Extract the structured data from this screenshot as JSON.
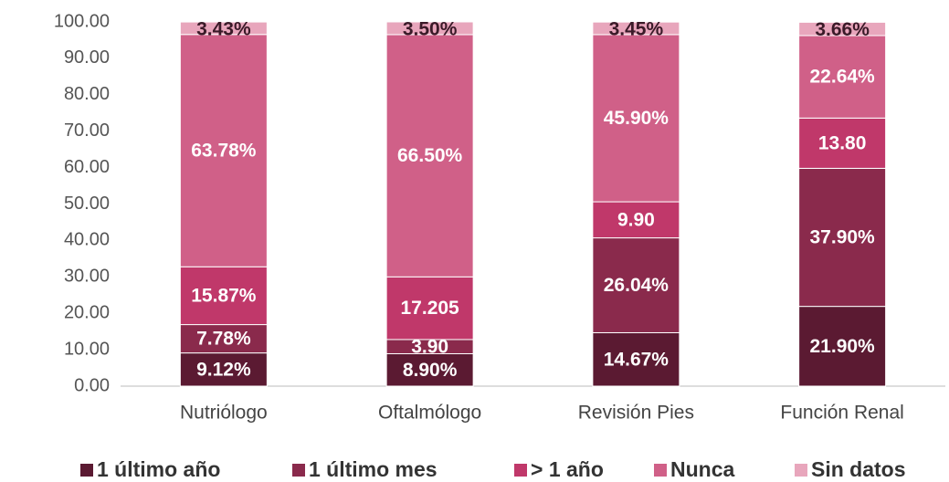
{
  "chart_data": {
    "type": "stacked_bar",
    "categories": [
      "Nutriólogo",
      "Oftalmólogo",
      "Revisión Pies",
      "Función Renal"
    ],
    "series": [
      {
        "name": "1 último año",
        "color": "#5b1a32",
        "values": [
          9.12,
          8.9,
          14.67,
          21.9
        ],
        "value_labels": [
          "9.12%",
          "8.90%",
          "14.67%",
          "21.90%"
        ]
      },
      {
        "name": "1 último mes",
        "color": "#8a2a4c",
        "values": [
          7.78,
          3.9,
          26.04,
          37.9
        ],
        "value_labels": [
          "7.78%",
          "3.90",
          "26.04%",
          "37.90%"
        ]
      },
      {
        "name": "> 1 año",
        "color": "#c0386a",
        "values": [
          15.87,
          17.205,
          9.9,
          13.8
        ],
        "value_labels": [
          "15.87%",
          "17.205",
          "9.90",
          "13.80"
        ]
      },
      {
        "name": "Nunca",
        "color": "#d06088",
        "values": [
          63.78,
          66.5,
          45.9,
          22.64
        ],
        "value_labels": [
          "63.78%",
          "66.50%",
          "45.90%",
          "22.64%"
        ]
      },
      {
        "name": "Sin datos",
        "color": "#e8a6bc",
        "values": [
          3.43,
          3.5,
          3.45,
          3.66
        ],
        "value_labels": [
          "3.43%",
          "3.50%",
          "3.45%",
          "3.66%"
        ]
      }
    ],
    "ylim": [
      0,
      100
    ],
    "yticks": [
      {
        "value": 0,
        "label": "0.00"
      },
      {
        "value": 10,
        "label": "10.00"
      },
      {
        "value": 20,
        "label": "20.00"
      },
      {
        "value": 30,
        "label": "30.00"
      },
      {
        "value": 40,
        "label": "40.00"
      },
      {
        "value": 50,
        "label": "50.00"
      },
      {
        "value": 60,
        "label": "60.00"
      },
      {
        "value": 70,
        "label": "70.00"
      },
      {
        "value": 80,
        "label": "80.00"
      },
      {
        "value": 90,
        "label": "90.00"
      },
      {
        "value": 100,
        "label": "100.00"
      }
    ],
    "legend": "bottom"
  }
}
